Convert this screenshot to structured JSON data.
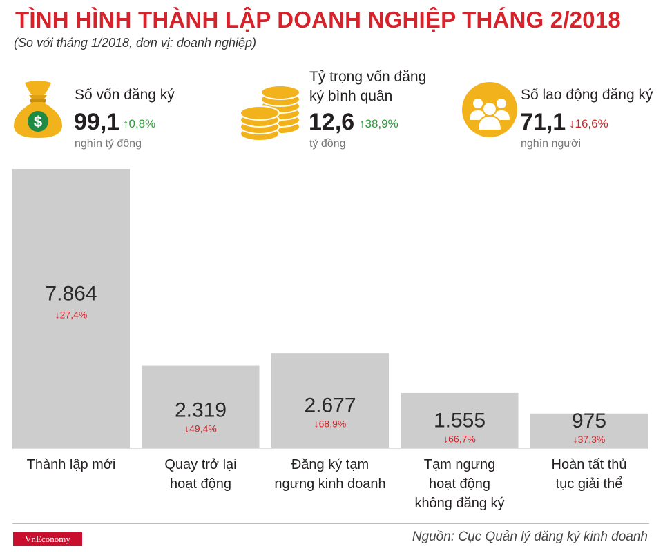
{
  "header": {
    "title": "TÌNH HÌNH THÀNH LẬP DOANH NGHIỆP THÁNG 2/2018",
    "subtitle": "(So với tháng 1/2018, đơn vị: doanh nghiệp)"
  },
  "kpis": [
    {
      "label": "Số vốn đăng ký",
      "value": "99,1",
      "change": "0,8%",
      "direction": "up",
      "unit": "nghìn tỷ đồng",
      "icon": "money-bag-icon"
    },
    {
      "label_lines": [
        "Tỷ trọng vốn đăng",
        "ký bình quân"
      ],
      "value": "12,6",
      "change": "38,9%",
      "direction": "up",
      "unit": "tỷ đồng",
      "icon": "coin-stack-icon"
    },
    {
      "label": "Số lao động đăng ký",
      "value": "71,1",
      "change": "16,6%",
      "direction": "down",
      "unit": "nghìn người",
      "icon": "people-icon"
    }
  ],
  "chart_data": {
    "type": "bar",
    "categories": [
      [
        "Thành lập mới"
      ],
      [
        "Quay trở lại",
        "hoạt động"
      ],
      [
        "Đăng ký tạm",
        "ngưng kinh doanh"
      ],
      [
        "Tạm ngưng",
        "hoạt động",
        "không đăng ký"
      ],
      [
        "Hoàn tất thủ",
        "tục giải thể"
      ]
    ],
    "values": [
      7864,
      2319,
      2677,
      1555,
      975
    ],
    "value_labels": [
      "7.864",
      "2.319",
      "2.677",
      "1.555",
      "975"
    ],
    "changes": [
      "27,4%",
      "49,4%",
      "68,9%",
      "66,7%",
      "37,3%"
    ],
    "change_direction": "down",
    "bar_color": "#cdcdcd",
    "ylim": [
      0,
      7864
    ]
  },
  "colors": {
    "title": "#d6222a",
    "up": "#2a9a3a",
    "down": "#d6222a",
    "icon": "#f2b21c"
  },
  "footer": {
    "logo": "VnEconomy",
    "source": "Nguồn: Cục Quản lý đăng ký kinh doanh"
  }
}
